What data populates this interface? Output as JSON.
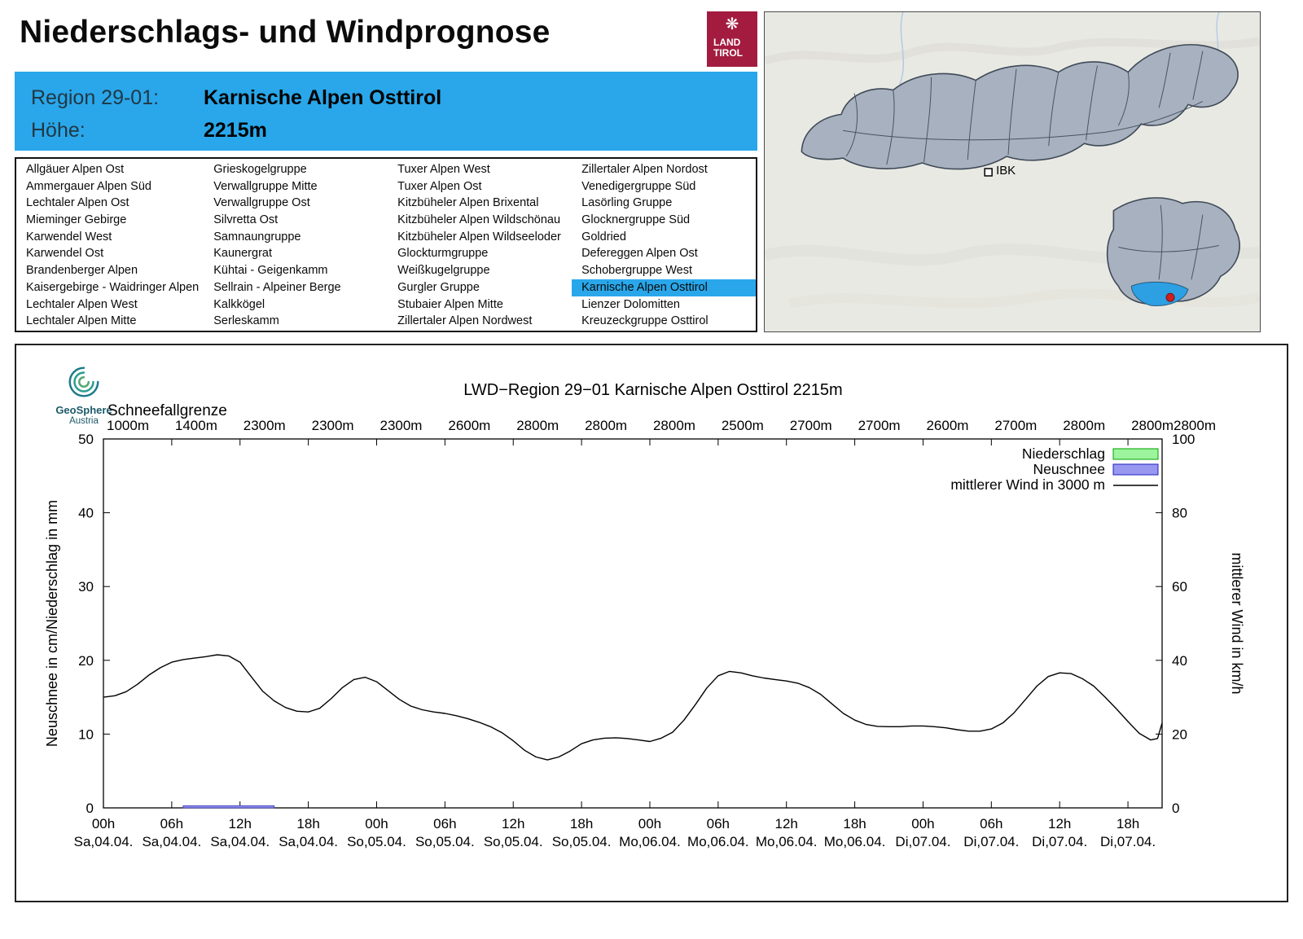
{
  "page": {
    "title": "Niederschlags- und Windprognose"
  },
  "tirol_logo": {
    "line1": "LAND",
    "line2": "TIROL",
    "bg": "#a31c3f"
  },
  "region_header": {
    "region_label": "Region 29-01:",
    "region_name": "Karnische Alpen Osttirol",
    "altitude_label": "Höhe:",
    "altitude_value": "2215m",
    "bg": "#29a7ea"
  },
  "region_list": {
    "selected": "Karnische Alpen Osttirol",
    "columns": [
      [
        "Allgäuer Alpen Ost",
        "Ammergauer Alpen Süd",
        "Lechtaler Alpen Ost",
        "Mieminger Gebirge",
        "Karwendel West",
        "Karwendel Ost",
        "Brandenberger Alpen",
        "Kaisergebirge - Waidringer Alpen",
        "Lechtaler Alpen West",
        "Lechtaler Alpen Mitte"
      ],
      [
        "Grieskogelgruppe",
        "Verwallgruppe Mitte",
        "Verwallgruppe Ost",
        "Silvretta Ost",
        "Samnaungruppe",
        "Kaunergrat",
        "Kühtai - Geigenkamm",
        "Sellrain - Alpeiner Berge",
        "Kalkkögel",
        "Serleskamm"
      ],
      [
        "Tuxer Alpen West",
        "Tuxer Alpen Ost",
        "Kitzbüheler Alpen Brixental",
        "Kitzbüheler Alpen Wildschönau",
        "Kitzbüheler Alpen Wildseeloder",
        "Glockturmgruppe",
        "Weißkugelgruppe",
        "Gurgler Gruppe",
        "Stubaier Alpen Mitte",
        "Zillertaler Alpen Nordwest"
      ],
      [
        "Zillertaler Alpen Nordost",
        "Venedigergruppe Süd",
        "Lasörling Gruppe",
        "Glocknergruppe Süd",
        "Goldried",
        "Defereggen Alpen Ost",
        "Schobergruppe West",
        "Karnische Alpen Osttirol",
        "Lienzer Dolomitten",
        "Kreuzeckgruppe Osttirol"
      ]
    ]
  },
  "map": {
    "city_marker": "IBK",
    "region_fill": "#a7b1bf",
    "region_stroke": "#3f4a57",
    "selected_fill": "#2d9fe3",
    "marker_dot": "#cf1f1f"
  },
  "geosphere_logo": {
    "name": "GeoSphere",
    "sub": "Austria"
  },
  "chart_data": {
    "type": "line",
    "title": "LWD−Region 29−01 Karnische Alpen Osttirol 2215m",
    "snowline_label": "Schneefallgrenze",
    "snowline_values": [
      "1000m",
      "1400m",
      "2300m",
      "2300m",
      "2300m",
      "2600m",
      "2800m",
      "2800m",
      "2800m",
      "2500m",
      "2700m",
      "2700m",
      "2600m",
      "2700m",
      "2800m",
      "2800m",
      "2800m"
    ],
    "ylabel_left": "Neuschnee in cm/Niederschlag in mm",
    "ylabel_right": "mittlerer Wind in km/h",
    "ylim_left": [
      0,
      50
    ],
    "ylim_right": [
      0,
      100
    ],
    "yticks_left": [
      0,
      10,
      20,
      30,
      40,
      50
    ],
    "yticks_right": [
      0,
      20,
      40,
      60,
      80,
      100
    ],
    "x_hours_range": [
      0,
      93
    ],
    "xticks": [
      {
        "hour": 0,
        "time": "00h",
        "day": "Sa,04.04."
      },
      {
        "hour": 6,
        "time": "06h",
        "day": "Sa,04.04."
      },
      {
        "hour": 12,
        "time": "12h",
        "day": "Sa,04.04."
      },
      {
        "hour": 18,
        "time": "18h",
        "day": "Sa,04.04."
      },
      {
        "hour": 24,
        "time": "00h",
        "day": "So,05.04."
      },
      {
        "hour": 30,
        "time": "06h",
        "day": "So,05.04."
      },
      {
        "hour": 36,
        "time": "12h",
        "day": "So,05.04."
      },
      {
        "hour": 42,
        "time": "18h",
        "day": "So,05.04."
      },
      {
        "hour": 48,
        "time": "00h",
        "day": "Mo,06.04."
      },
      {
        "hour": 54,
        "time": "06h",
        "day": "Mo,06.04."
      },
      {
        "hour": 60,
        "time": "12h",
        "day": "Mo,06.04."
      },
      {
        "hour": 66,
        "time": "18h",
        "day": "Mo,06.04."
      },
      {
        "hour": 72,
        "time": "00h",
        "day": "Di,07.04."
      },
      {
        "hour": 78,
        "time": "06h",
        "day": "Di,07.04."
      },
      {
        "hour": 84,
        "time": "12h",
        "day": "Di,07.04."
      },
      {
        "hour": 90,
        "time": "18h",
        "day": "Di,07.04."
      }
    ],
    "legend": [
      {
        "label": "Niederschlag",
        "swatch": "area",
        "color": "#9cf59c",
        "border": "#00a000"
      },
      {
        "label": "Neuschnee",
        "swatch": "area",
        "color": "#9898f0",
        "border": "#2020c0"
      },
      {
        "label": "mittlerer Wind in 3000 m",
        "swatch": "line",
        "color": "#000000"
      }
    ],
    "neuschnee_bar": {
      "from_hour": 7,
      "to_hour": 15,
      "value_cm": 0.3,
      "color": "#8f8fe8",
      "border": "#3a3ac0"
    },
    "wind_series": {
      "name": "mittlerer Wind in 3000 m",
      "axis": "right",
      "units": "km/h",
      "points": [
        [
          0,
          30
        ],
        [
          1,
          30.4
        ],
        [
          2,
          31.5
        ],
        [
          3,
          33.5
        ],
        [
          4,
          36
        ],
        [
          5,
          38
        ],
        [
          6,
          39.5
        ],
        [
          7,
          40.2
        ],
        [
          8,
          40.6
        ],
        [
          9,
          41
        ],
        [
          10,
          41.5
        ],
        [
          11,
          41.2
        ],
        [
          12,
          39.5
        ],
        [
          13,
          35.5
        ],
        [
          14,
          31.6
        ],
        [
          15,
          29
        ],
        [
          16,
          27.2
        ],
        [
          17,
          26.2
        ],
        [
          18,
          26
        ],
        [
          19,
          27
        ],
        [
          20,
          29.6
        ],
        [
          21,
          32.6
        ],
        [
          22,
          34.8
        ],
        [
          23,
          35.4
        ],
        [
          24,
          34.2
        ],
        [
          25,
          31.8
        ],
        [
          26,
          29.4
        ],
        [
          27,
          27.6
        ],
        [
          28,
          26.6
        ],
        [
          29,
          26
        ],
        [
          30,
          25.6
        ],
        [
          31,
          25
        ],
        [
          32,
          24.2
        ],
        [
          33,
          23.2
        ],
        [
          34,
          22
        ],
        [
          35,
          20.4
        ],
        [
          36,
          18.2
        ],
        [
          37,
          15.6
        ],
        [
          38,
          13.8
        ],
        [
          39,
          13
        ],
        [
          40,
          13.8
        ],
        [
          41,
          15.4
        ],
        [
          42,
          17.4
        ],
        [
          43,
          18.4
        ],
        [
          44,
          18.9
        ],
        [
          45,
          19
        ],
        [
          46,
          18.8
        ],
        [
          47,
          18.4
        ],
        [
          48,
          18
        ],
        [
          49,
          18.9
        ],
        [
          50,
          20.5
        ],
        [
          51,
          23.8
        ],
        [
          52,
          28
        ],
        [
          53,
          32.5
        ],
        [
          54,
          35.8
        ],
        [
          55,
          37
        ],
        [
          56,
          36.6
        ],
        [
          57,
          35.8
        ],
        [
          58,
          35.2
        ],
        [
          59,
          34.8
        ],
        [
          60,
          34.4
        ],
        [
          61,
          33.8
        ],
        [
          62,
          32.6
        ],
        [
          63,
          30.8
        ],
        [
          64,
          28.2
        ],
        [
          65,
          25.6
        ],
        [
          66,
          23.8
        ],
        [
          67,
          22.6
        ],
        [
          68,
          22.1
        ],
        [
          69,
          22
        ],
        [
          70,
          22
        ],
        [
          71,
          22.2
        ],
        [
          72,
          22.2
        ],
        [
          73,
          22
        ],
        [
          74,
          21.7
        ],
        [
          75,
          21.2
        ],
        [
          76,
          20.8
        ],
        [
          77,
          20.8
        ],
        [
          78,
          21.4
        ],
        [
          79,
          23
        ],
        [
          80,
          25.8
        ],
        [
          81,
          29.4
        ],
        [
          82,
          33
        ],
        [
          83,
          35.6
        ],
        [
          84,
          36.6
        ],
        [
          85,
          36.4
        ],
        [
          86,
          35
        ],
        [
          87,
          33
        ],
        [
          88,
          30
        ],
        [
          89,
          26.8
        ],
        [
          90,
          23.4
        ],
        [
          91,
          20.2
        ],
        [
          92,
          18.4
        ],
        [
          92.6,
          18.8
        ],
        [
          93,
          23
        ]
      ]
    }
  }
}
